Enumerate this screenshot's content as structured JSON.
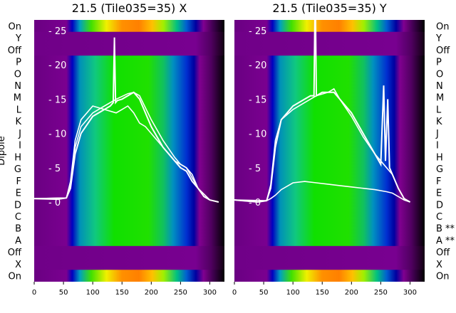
{
  "chart_data": [
    {
      "type": "heatmap",
      "title": "21.5 (Tile035=35) X",
      "ylabel": "Dipole",
      "row_labels": [
        "On",
        "Y",
        "Off",
        "P",
        "O",
        "N",
        "M",
        "L",
        "K",
        "J",
        "I",
        "H",
        "G",
        "F",
        "E",
        "D",
        "C",
        "B",
        "A",
        "Off",
        "X",
        "On"
      ],
      "xticks": [
        0,
        50,
        100,
        150,
        200,
        250,
        300
      ],
      "xlim": [
        0,
        325
      ],
      "overlay_yticks": [
        0,
        5,
        10,
        15,
        20,
        25
      ],
      "overlay_ylim": [
        -0.8,
        26
      ],
      "series": [
        {
          "name": "line1",
          "x": [
            0,
            40,
            55,
            62,
            70,
            80,
            100,
            120,
            130,
            135,
            137,
            139,
            142,
            150,
            160,
            170,
            180,
            190,
            200,
            220,
            240,
            250,
            260,
            270,
            280,
            290,
            300,
            315
          ],
          "y": [
            0.5,
            0.4,
            0.6,
            2,
            7,
            10,
            12.5,
            13.5,
            14,
            14.5,
            24,
            14.5,
            14.8,
            15,
            15.5,
            16,
            15,
            13,
            11,
            8,
            6,
            5,
            4.5,
            3,
            2,
            0.8,
            0.3,
            0
          ]
        },
        {
          "name": "line2",
          "x": [
            0,
            55,
            62,
            70,
            80,
            100,
            120,
            140,
            160,
            170,
            180,
            200,
            220,
            240,
            250,
            260,
            270,
            280,
            290,
            300,
            315
          ],
          "y": [
            0.5,
            0.6,
            2.5,
            8,
            11,
            13,
            14,
            15,
            15.8,
            16,
            15.5,
            12,
            9,
            6.5,
            5.5,
            5,
            4,
            2,
            0.8,
            0.3,
            0
          ]
        },
        {
          "name": "line3",
          "x": [
            0,
            55,
            62,
            70,
            80,
            100,
            120,
            140,
            150,
            160,
            170,
            180,
            190,
            200,
            220,
            240,
            250,
            260,
            280,
            300,
            315
          ],
          "y": [
            0.5,
            0.6,
            3,
            9,
            12,
            14,
            13.5,
            13,
            13.5,
            14,
            13,
            11.5,
            11,
            10,
            8,
            6,
            5.5,
            5,
            2,
            0.3,
            0
          ]
        }
      ]
    },
    {
      "type": "heatmap",
      "title": "21.5 (Tile035=35) Y",
      "row_labels": [
        "On",
        "Y",
        "Off",
        "P",
        "O",
        "N",
        "M",
        "L",
        "K",
        "J",
        "I",
        "H",
        "G",
        "F",
        "E",
        "D",
        "C",
        "B **",
        "A **",
        "Off",
        "X",
        "On"
      ],
      "xticks": [
        0,
        50,
        100,
        150,
        200,
        250,
        300
      ],
      "xlim": [
        0,
        325
      ],
      "overlay_yticks": [
        0,
        5,
        10,
        15,
        20,
        25
      ],
      "overlay_ylim": [
        -0.8,
        26
      ],
      "series": [
        {
          "name": "line1",
          "x": [
            0,
            40,
            55,
            62,
            70,
            80,
            100,
            120,
            130,
            136,
            138,
            140,
            150,
            160,
            170,
            180,
            200,
            220,
            240,
            250,
            255,
            258,
            262,
            265,
            270,
            280,
            290,
            300
          ],
          "y": [
            0.3,
            0,
            0.2,
            2,
            8,
            12,
            14,
            15,
            15.5,
            15.5,
            32,
            15.5,
            16,
            16,
            16,
            15,
            13,
            10,
            7,
            5.5,
            17,
            6,
            15,
            5,
            4,
            2,
            0.5,
            0
          ]
        },
        {
          "name": "line2",
          "x": [
            0,
            55,
            62,
            70,
            80,
            100,
            120,
            140,
            160,
            170,
            180,
            200,
            220,
            240,
            260,
            270,
            280,
            290,
            300
          ],
          "y": [
            0.3,
            0.2,
            2.5,
            9,
            12,
            13.5,
            14.5,
            15.5,
            16,
            16.5,
            15,
            12.5,
            9.5,
            7,
            5,
            4,
            2,
            0.5,
            0
          ]
        },
        {
          "name": "line3",
          "x": [
            0,
            40,
            55,
            62,
            70,
            80,
            100,
            120,
            140,
            160,
            180,
            200,
            220,
            240,
            260,
            270,
            280,
            290,
            300
          ],
          "y": [
            0.3,
            0,
            0.2,
            0.5,
            1,
            1.8,
            2.8,
            3,
            2.8,
            2.6,
            2.4,
            2.2,
            2,
            1.8,
            1.5,
            1.3,
            0.8,
            0.3,
            0
          ]
        }
      ]
    }
  ],
  "colors": {
    "line": "#ffffff"
  }
}
